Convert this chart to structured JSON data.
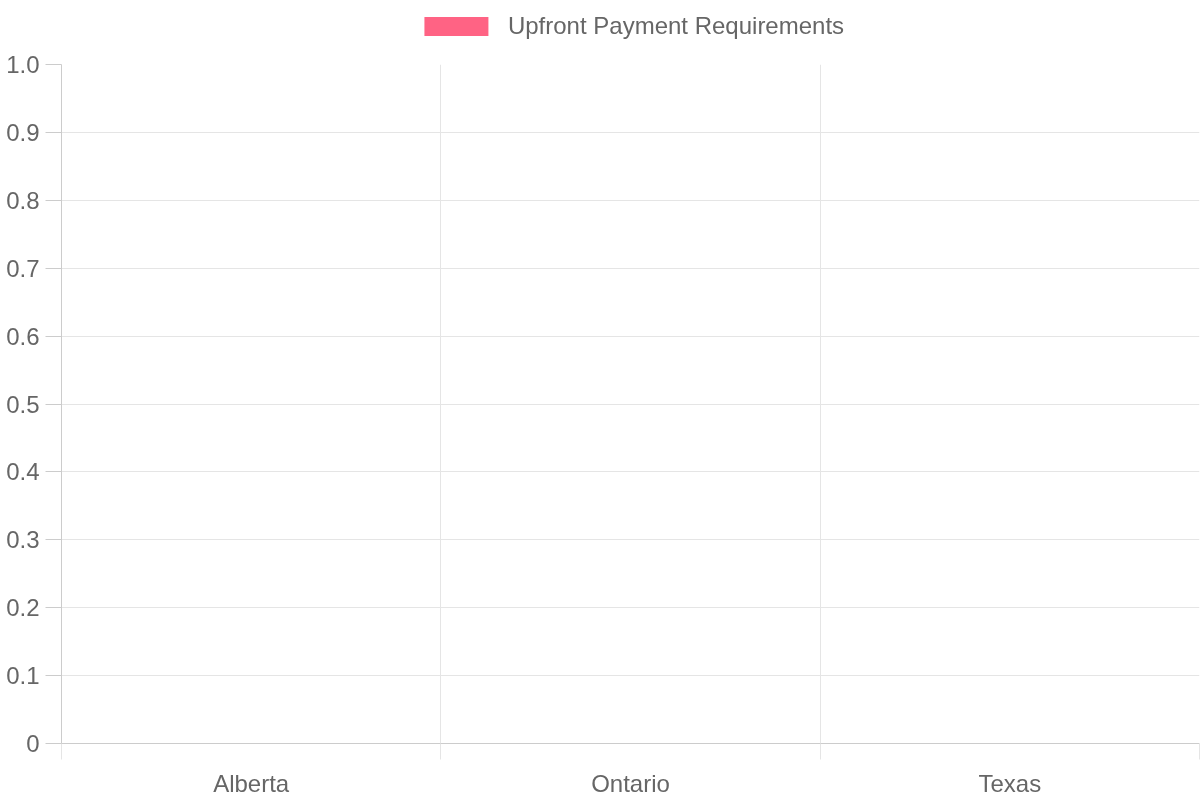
{
  "chart_data": {
    "type": "bar",
    "categories": [
      "Alberta",
      "Ontario",
      "Texas"
    ],
    "series": [
      {
        "name": "Upfront Payment Requirements",
        "color": "#ff6384",
        "values": [
          0,
          0,
          0
        ]
      }
    ],
    "ylim": [
      0,
      1
    ],
    "yticks": [
      0,
      0.1,
      0.2,
      0.3,
      0.4,
      0.5,
      0.6,
      0.7,
      0.8,
      0.9,
      {
        "value": 1,
        "label": "1.0"
      }
    ],
    "grid": true,
    "legend": "top"
  }
}
